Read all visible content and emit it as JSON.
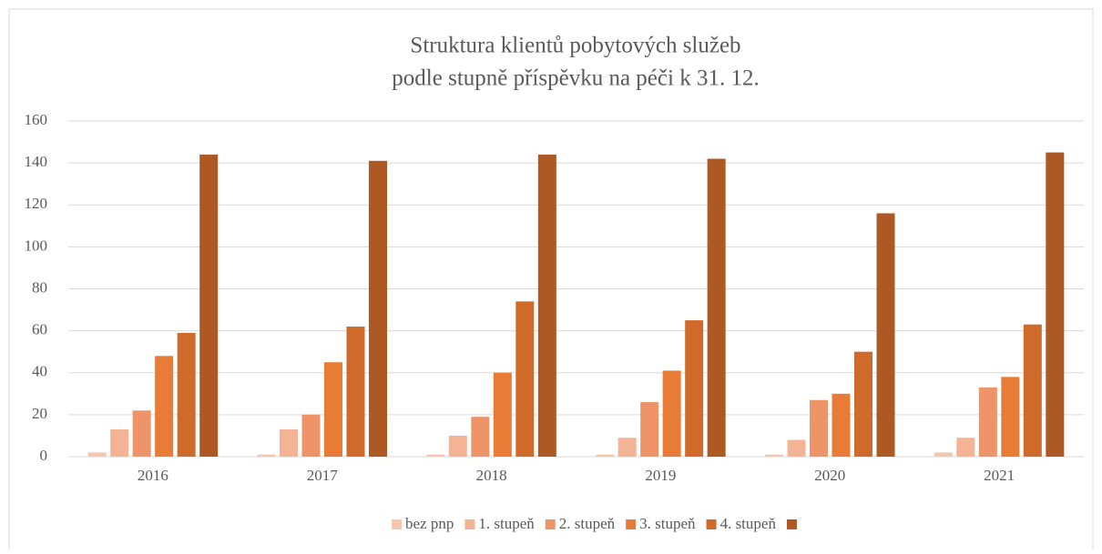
{
  "chart_data": {
    "type": "bar",
    "title": [
      "Struktura klientů pobytových služeb",
      "podle stupně příspěvku na péči k 31. 12."
    ],
    "categories": [
      "2016",
      "2017",
      "2018",
      "2019",
      "2020",
      "2021"
    ],
    "series": [
      {
        "name": "bez pnp",
        "color": "#f6c7b0",
        "values": [
          2,
          1,
          1,
          1,
          1,
          2
        ]
      },
      {
        "name": "1. stupeň",
        "color": "#f4b395",
        "values": [
          13,
          13,
          10,
          9,
          8,
          9
        ]
      },
      {
        "name": "2. stupeň",
        "color": "#ef9468",
        "values": [
          22,
          20,
          19,
          26,
          27,
          33
        ]
      },
      {
        "name": "3. stupeň",
        "color": "#e87b36",
        "values": [
          48,
          45,
          40,
          41,
          30,
          38
        ]
      },
      {
        "name": "4. stupeň",
        "color": "#cf6a2b",
        "values": [
          59,
          62,
          74,
          65,
          50,
          63
        ]
      },
      {
        "name": null,
        "color": "#ae5924",
        "values": [
          144,
          141,
          144,
          142,
          116,
          145
        ]
      }
    ],
    "ylim": [
      0,
      160
    ],
    "yticks": [
      0,
      20,
      40,
      60,
      80,
      100,
      120,
      140,
      160
    ],
    "grid": true,
    "legend": "bottom"
  }
}
